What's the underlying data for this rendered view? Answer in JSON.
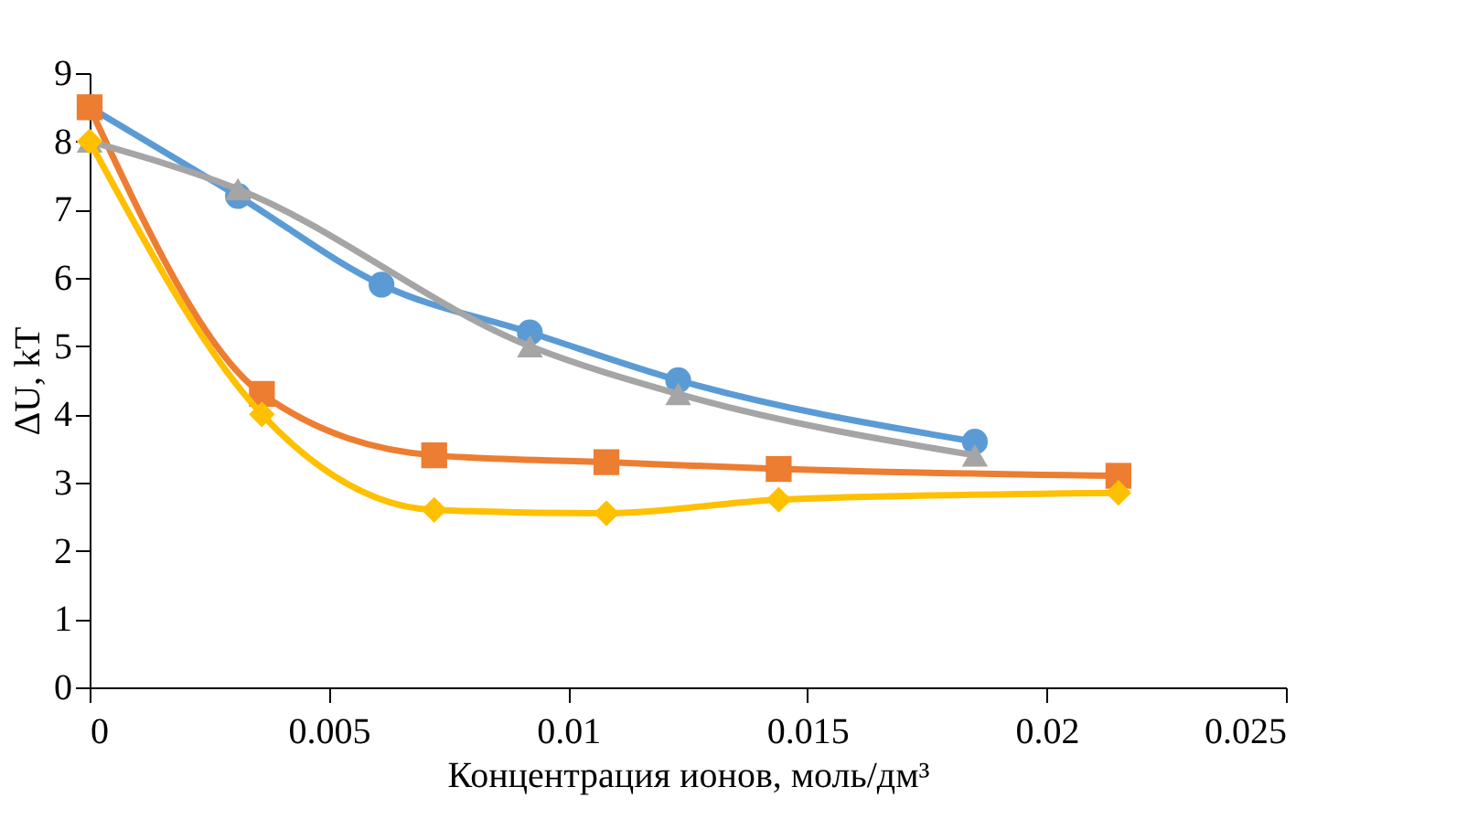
{
  "chart_data": {
    "type": "line",
    "xlabel": "Концентрация ионов, моль/дм³",
    "ylabel": "ΔU, kT",
    "xlim": [
      0,
      0.025
    ],
    "xticks": [
      0,
      0.005,
      0.01,
      0.015,
      0.02,
      0.025
    ],
    "ylim": [
      0,
      9
    ],
    "yticks": [
      0,
      1,
      2,
      3,
      4,
      5,
      6,
      7,
      8,
      9
    ],
    "series": [
      {
        "color": "#5b9bd5",
        "marker": "circle",
        "x": [
          0,
          0.0031,
          0.0061,
          0.0092,
          0.0123,
          0.0185
        ],
        "values": [
          8.5,
          7.2,
          5.9,
          5.2,
          4.5,
          3.6
        ]
      },
      {
        "color": "#ed7d31",
        "marker": "square",
        "x": [
          0,
          0.0036,
          0.0072,
          0.0108,
          0.0144,
          0.0215
        ],
        "values": [
          8.5,
          4.3,
          3.4,
          3.3,
          3.2,
          3.1
        ]
      },
      {
        "color": "#a5a5a5",
        "marker": "triangle",
        "x": [
          0,
          0.0031,
          0.0092,
          0.0123,
          0.0185
        ],
        "values": [
          8.0,
          7.3,
          5.0,
          4.3,
          3.4
        ]
      },
      {
        "color": "#ffc000",
        "marker": "diamond",
        "x": [
          0,
          0.0036,
          0.0072,
          0.0108,
          0.0144,
          0.0215
        ],
        "values": [
          8.0,
          4.0,
          2.6,
          2.55,
          2.75,
          2.85
        ]
      }
    ]
  }
}
